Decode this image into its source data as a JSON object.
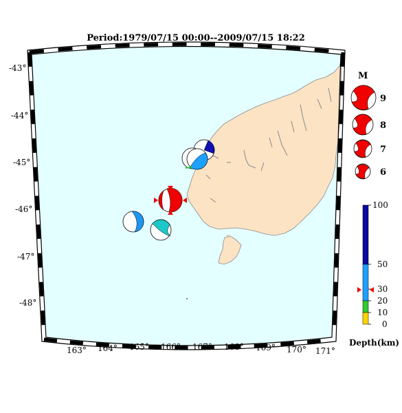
{
  "map": {
    "title": "Period:1979/07/15 00:00--2009/07/15 18:22",
    "lat_labels": [
      "-43°",
      "-44°",
      "-45°",
      "-46°",
      "-47°",
      "-48°"
    ],
    "lon_labels": [
      "163°",
      "164°",
      "165°",
      "166°",
      "167°",
      "168°",
      "169°",
      "170°",
      "171°"
    ],
    "colors": {
      "ocean": "#e4ffff",
      "land": "#fbe3c4",
      "coast": "#8a8a8a",
      "mechanism_red": "#f00000",
      "frame": "#000000"
    }
  },
  "events": [
    {
      "name": "event-1",
      "color": "#0f0fb4",
      "depth_class": "50-100 km"
    },
    {
      "name": "event-2",
      "color": "#1ea0ff",
      "depth_class": "30-50 km"
    },
    {
      "name": "event-3",
      "color": "#1ea0ff",
      "depth_class": "30-50 km"
    },
    {
      "name": "event-4",
      "color": "#f00000",
      "depth_class": "highlighted"
    },
    {
      "name": "event-5",
      "color": "#1e96f0",
      "depth_class": "30-50 km"
    },
    {
      "name": "event-6",
      "color": "#1ec8c8",
      "depth_class": "30-50 km"
    }
  ],
  "magnitude_legend": {
    "heading": "M",
    "entries": [
      {
        "label": "9",
        "magnitude": 9
      },
      {
        "label": "8",
        "magnitude": 8
      },
      {
        "label": "7",
        "magnitude": 7
      },
      {
        "label": "6",
        "magnitude": 6
      }
    ]
  },
  "depth_scale": {
    "title": "Depth(km)",
    "ticks": [
      "100",
      "50",
      "30",
      "20",
      "10",
      "0"
    ],
    "marker": "30",
    "colors": {
      "0-10": "#ffd200",
      "10-20": "#32c832",
      "20-50": "#1ea0ff",
      "50-100": "#0a0aa0"
    }
  }
}
